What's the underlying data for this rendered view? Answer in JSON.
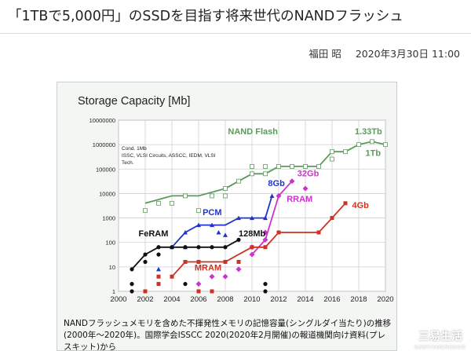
{
  "article": {
    "title": "「1TBで5,000円」のSSDを目指す将来世代のNANDフラッシュ",
    "author": "福田 昭",
    "date": "2020年3月30日 11:00"
  },
  "figure": {
    "caption": "NANDフラッシュメモリを含めた不揮発性メモリの記憶容量(シングルダイ当たり)の推移(2000年〜2020年)。国際学会ISSCC 2020(2020年2月開催)の報道機関向け資料(プレスキット)から"
  },
  "watermark": {
    "text": "三易生活",
    "sub": "SANYISHENGHUO"
  },
  "colors": {
    "nand": "#5a9a5a",
    "pcm": "#2233cc",
    "rram": "#cc33cc",
    "feram": "#111111",
    "mram": "#cc3322"
  },
  "chart_data": {
    "type": "line",
    "title": "Storage Capacity [Mb]",
    "note": [
      "Cond. 1Mb",
      "ISSC, VLSI Circuits, ASSCC, IEDM, VLSI",
      "Tech."
    ],
    "x_ticks": [
      2000,
      2002,
      2004,
      2006,
      2008,
      2010,
      2012,
      2014,
      2016,
      2018,
      2020
    ],
    "y_ticks": [
      "1",
      "10",
      "100",
      "1000",
      "10000",
      "100000",
      "1000000",
      "10000000"
    ],
    "xlim": [
      2000,
      2020
    ],
    "ylim": [
      1,
      10000000
    ],
    "yscale": "log",
    "grid": true,
    "series": [
      {
        "name": "NAND Flash",
        "color": "#5a9a5a",
        "line": [
          [
            2002,
            4000
          ],
          [
            2004,
            8000
          ],
          [
            2006,
            8000
          ],
          [
            2008,
            16000
          ],
          [
            2010,
            64000
          ],
          [
            2011,
            64000
          ],
          [
            2012,
            128000
          ],
          [
            2014,
            128000
          ],
          [
            2015,
            128000
          ],
          [
            2016,
            512000
          ],
          [
            2017,
            512000
          ],
          [
            2018,
            1000000
          ],
          [
            2019,
            1330000
          ],
          [
            2020,
            1000000
          ]
        ],
        "points": [
          [
            2002,
            2000
          ],
          [
            2003,
            4000
          ],
          [
            2004,
            4000
          ],
          [
            2005,
            8000
          ],
          [
            2006,
            2000
          ],
          [
            2007,
            8000
          ],
          [
            2008,
            8000
          ],
          [
            2008,
            16000
          ],
          [
            2009,
            32000
          ],
          [
            2010,
            64000
          ],
          [
            2010,
            128000
          ],
          [
            2011,
            64000
          ],
          [
            2011,
            128000
          ],
          [
            2012,
            128000
          ],
          [
            2013,
            128000
          ],
          [
            2014,
            128000
          ],
          [
            2015,
            128000
          ],
          [
            2016,
            256000
          ],
          [
            2016,
            512000
          ],
          [
            2017,
            512000
          ],
          [
            2018,
            1000000
          ],
          [
            2019,
            1330000
          ],
          [
            2020,
            1000000
          ]
        ],
        "marker": "square-open"
      },
      {
        "name": "PCM",
        "color": "#2233cc",
        "line": [
          [
            2004,
            64
          ],
          [
            2005,
            256
          ],
          [
            2006,
            512
          ],
          [
            2007,
            512
          ],
          [
            2008,
            512
          ],
          [
            2009,
            1000
          ],
          [
            2010,
            1000
          ],
          [
            2011,
            1000
          ],
          [
            2011.5,
            8000
          ]
        ],
        "points": [
          [
            2003,
            8
          ],
          [
            2004,
            64
          ],
          [
            2005,
            64
          ],
          [
            2005,
            256
          ],
          [
            2006,
            512
          ],
          [
            2007,
            512
          ],
          [
            2007.5,
            256
          ],
          [
            2008,
            200
          ],
          [
            2009,
            1000
          ],
          [
            2010,
            1000
          ],
          [
            2011,
            1000
          ],
          [
            2011.5,
            8000
          ]
        ],
        "marker": "triangle"
      },
      {
        "name": "RRAM",
        "color": "#cc33cc",
        "line": [
          [
            2010,
            32
          ],
          [
            2011,
            128
          ],
          [
            2012,
            8000
          ],
          [
            2013,
            32000
          ]
        ],
        "points": [
          [
            2006,
            2
          ],
          [
            2007,
            4
          ],
          [
            2008,
            4
          ],
          [
            2009,
            8
          ],
          [
            2010,
            32
          ],
          [
            2010,
            64
          ],
          [
            2011,
            128
          ],
          [
            2011,
            256
          ],
          [
            2012,
            8000
          ],
          [
            2013,
            32000
          ],
          [
            2014,
            16000
          ]
        ],
        "marker": "diamond"
      },
      {
        "name": "FeRAM",
        "color": "#111111",
        "line": [
          [
            2001,
            8
          ],
          [
            2002,
            32
          ],
          [
            2003,
            64
          ],
          [
            2004,
            64
          ],
          [
            2005,
            64
          ],
          [
            2006,
            64
          ],
          [
            2007,
            64
          ],
          [
            2008,
            64
          ],
          [
            2009,
            128
          ]
        ],
        "points": [
          [
            2001,
            8
          ],
          [
            2001,
            2
          ],
          [
            2001,
            1
          ],
          [
            2002,
            16
          ],
          [
            2002,
            32
          ],
          [
            2003,
            64
          ],
          [
            2003,
            32
          ],
          [
            2004,
            64
          ],
          [
            2005,
            64
          ],
          [
            2005,
            2
          ],
          [
            2006,
            64
          ],
          [
            2007,
            64
          ],
          [
            2008,
            64
          ],
          [
            2009,
            128
          ],
          [
            2011,
            1
          ],
          [
            2011,
            2
          ]
        ],
        "marker": "circle"
      },
      {
        "name": "MRAM",
        "color": "#cc3322",
        "line": [
          [
            2004,
            4
          ],
          [
            2005,
            16
          ],
          [
            2006,
            16
          ],
          [
            2008,
            16
          ],
          [
            2009,
            32
          ],
          [
            2010,
            64
          ],
          [
            2011,
            64
          ],
          [
            2012,
            256
          ],
          [
            2014,
            256
          ],
          [
            2015,
            256
          ],
          [
            2016,
            1000
          ],
          [
            2017,
            4000
          ]
        ],
        "points": [
          [
            2002,
            1
          ],
          [
            2003,
            4
          ],
          [
            2003,
            2
          ],
          [
            2004,
            4
          ],
          [
            2005,
            16
          ],
          [
            2006,
            16
          ],
          [
            2006,
            1
          ],
          [
            2007,
            1
          ],
          [
            2008,
            16
          ],
          [
            2009,
            16
          ],
          [
            2010,
            64
          ],
          [
            2011,
            64
          ],
          [
            2012,
            256
          ],
          [
            2015,
            256
          ],
          [
            2016,
            1000
          ],
          [
            2017,
            4000
          ]
        ],
        "marker": "square"
      }
    ],
    "annotations": [
      {
        "text": "NAND Flash",
        "color": "#5a9a5a",
        "x": 2008.2,
        "y": 2600000
      },
      {
        "text": "1.33Tb",
        "color": "#5a9a5a",
        "x": 2017.7,
        "y": 2600000
      },
      {
        "text": "1Tb",
        "color": "#5a9a5a",
        "x": 2018.5,
        "y": 350000
      },
      {
        "text": "8Gb",
        "color": "#2233cc",
        "x": 2011.2,
        "y": 20000
      },
      {
        "text": "32Gb",
        "color": "#cc33cc",
        "x": 2013.4,
        "y": 50000
      },
      {
        "text": "RRAM",
        "color": "#cc33cc",
        "x": 2012.6,
        "y": 4500
      },
      {
        "text": "4Gb",
        "color": "#cc3322",
        "x": 2017.5,
        "y": 2500
      },
      {
        "text": "PCM",
        "color": "#2233cc",
        "x": 2006.3,
        "y": 1300
      },
      {
        "text": "FeRAM",
        "color": "#111111",
        "x": 2001.5,
        "y": 180
      },
      {
        "text": "128Mb",
        "color": "#111111",
        "x": 2009.0,
        "y": 180
      },
      {
        "text": "MRAM",
        "color": "#cc3322",
        "x": 2005.7,
        "y": 7
      }
    ]
  }
}
